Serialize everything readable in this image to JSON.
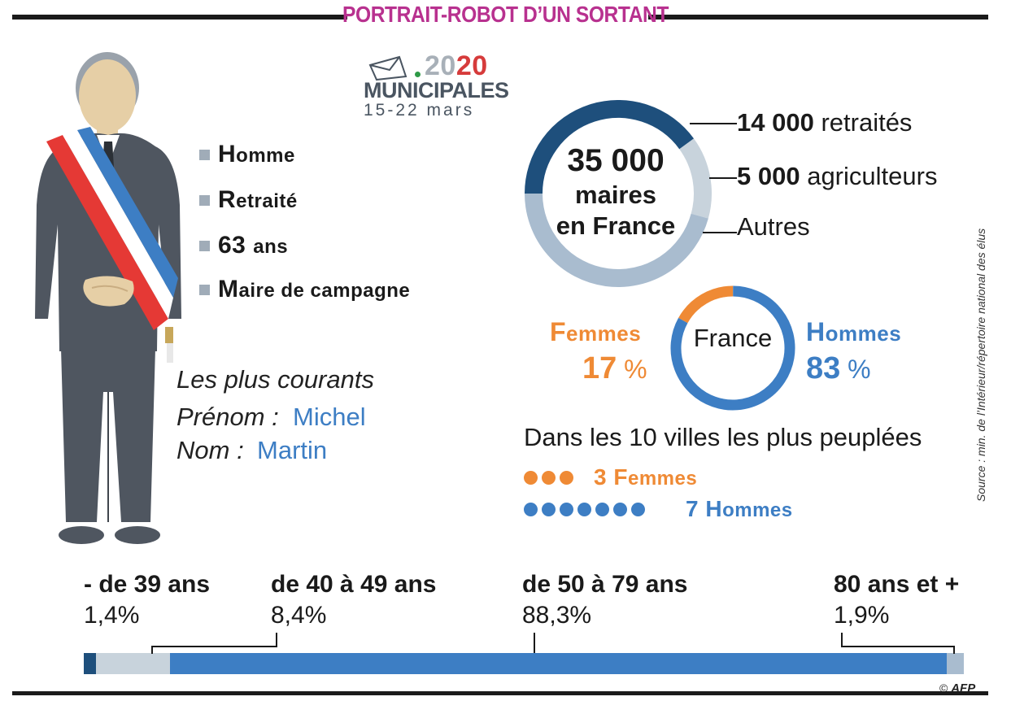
{
  "header": {
    "title": "PORTRAIT-ROBOT D’UN SORTANT"
  },
  "logo": {
    "year_a": "20",
    "year_b": "20",
    "word": "MUNICIPALES",
    "dates": "15-22 mars"
  },
  "profile": {
    "bullets": [
      {
        "first": "H",
        "rest": "omme"
      },
      {
        "first": "R",
        "rest": "etraité"
      },
      {
        "first": "63 ",
        "rest": "ans"
      },
      {
        "first": "M",
        "rest": "aire de campagne"
      }
    ],
    "common_heading": "Les plus courants",
    "first_name_label": "Prénom  :",
    "first_name_value": "Michel",
    "last_name_label": "Nom :",
    "last_name_value": "Martin"
  },
  "mayors": {
    "center_number": "35 000",
    "center_line1": "maires",
    "center_line2": "en France",
    "retraites_num": "14 000",
    "retraites_word": "retraités",
    "agriculteurs_num": "5 000",
    "agriculteurs_word": "agriculteurs",
    "autres": "Autres"
  },
  "gender": {
    "femmes_first": "F",
    "femmes_rest": "emmes",
    "femmes_pct": "17",
    "pct_sign": " %",
    "hommes_first": "H",
    "hommes_rest": "ommes",
    "hommes_pct": "83",
    "center": "France"
  },
  "villes": {
    "title": "Dans les 10 villes les plus peuplées",
    "femmes_label_num": "3 ",
    "femmes_label_first": "F",
    "femmes_label_rest": "emmes",
    "hommes_label_num": "7 ",
    "hommes_label_first": "H",
    "hommes_label_rest": "ommes"
  },
  "ages": [
    {
      "label": "- de 39 ans",
      "value": "1,4%"
    },
    {
      "label": "de 40 à 49 ans",
      "value": "8,4%"
    },
    {
      "label": "de 50 à 79 ans",
      "value": "88,3%"
    },
    {
      "label": "80 ans et +",
      "value": "1,9%"
    }
  ],
  "source": "Source : min. de l’Intérieur/répertoire national des élus",
  "credit": {
    "copyright": "©",
    "agency": "AFP"
  },
  "colors": {
    "title": "#b8318f",
    "dark_blue": "#1e4f7c",
    "blue": "#3d7ec4",
    "light_blue": "#a9bccf",
    "pale": "#c8d3dc",
    "orange": "#ef8a35",
    "suit": "#4f5660"
  },
  "chart_data": [
    {
      "type": "pie",
      "title": "35 000 maires en France",
      "categories": [
        "retraités",
        "agriculteurs",
        "Autres"
      ],
      "values": [
        14000,
        5000,
        16000
      ],
      "colors": [
        "#1e4f7c",
        "#c8d3dc",
        "#a9bccf"
      ]
    },
    {
      "type": "pie",
      "title": "France",
      "categories": [
        "Femmes",
        "Hommes"
      ],
      "values": [
        17,
        83
      ],
      "colors": [
        "#ef8a35",
        "#3d7ec4"
      ]
    },
    {
      "type": "bar",
      "title": "Dans les 10 villes les plus peuplées",
      "categories": [
        "Femmes",
        "Hommes"
      ],
      "values": [
        3,
        7
      ]
    },
    {
      "type": "bar",
      "categories": [
        "- de 39 ans",
        "de 40 à 49 ans",
        "de 50 à 79 ans",
        "80 ans et +"
      ],
      "values": [
        1.4,
        8.4,
        88.3,
        1.9
      ],
      "colors": [
        "#1e4f7c",
        "#c8d3dc",
        "#3d7ec4",
        "#a9bccf"
      ]
    }
  ]
}
